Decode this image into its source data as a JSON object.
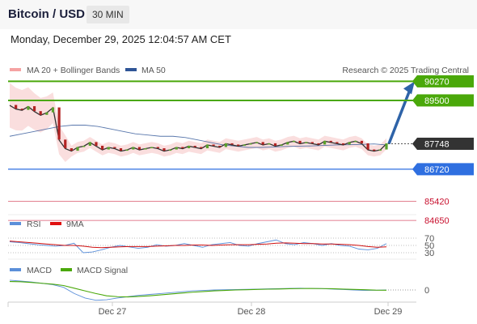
{
  "header": {
    "pair": "Bitcoin / USD",
    "timeframe": "30 MIN"
  },
  "timestamp": "Monday, December 29, 2025 12:04:57 AM CET",
  "legend": {
    "bb": "MA 20 + Bollinger Bands",
    "ma50": "MA 50",
    "credit": "Research © 2025 Trading Central"
  },
  "colors": {
    "green": "#4aa80a",
    "blue": "#2f6fe0",
    "red": "#c8102e",
    "price": "#333333",
    "bb": "#f5b5b5",
    "arrow": "#2e63a8"
  },
  "chart_data": [
    {
      "type": "line",
      "x_ticks": [
        "Dec 27",
        "Dec 28",
        "Dec 29"
      ],
      "ylim": [
        84000,
        91200
      ],
      "price_path": [
        89300,
        89150,
        89100,
        89250,
        89050,
        88900,
        89000,
        89200,
        87900,
        87550,
        87450,
        87600,
        87650,
        87800,
        87650,
        87500,
        87600,
        87550,
        87450,
        87500,
        87600,
        87500,
        87550,
        87600,
        87550,
        87450,
        87500,
        87600,
        87550,
        87650,
        87600,
        87550,
        87700,
        87650,
        87600,
        87750,
        87700,
        87650,
        87700,
        87750,
        87800,
        87700,
        87750,
        87650,
        87700,
        87800,
        87850,
        87750,
        87800,
        87750,
        87700,
        87850,
        87800,
        87750,
        87700,
        87800,
        87850,
        87750,
        87500,
        87450,
        87500,
        87748
      ],
      "ma50_path": [
        88050,
        88150,
        88250,
        88350,
        88450,
        88500,
        88500,
        88450,
        88350,
        88250,
        88150,
        88100,
        88050,
        88050,
        88000,
        87900,
        87800,
        87700,
        87650,
        87600,
        87600,
        87620,
        87640,
        87650,
        87660,
        87680,
        87700,
        87710,
        87720,
        87740,
        87700
      ],
      "levels": [
        {
          "value": "90270",
          "color": "#4aa80a"
        },
        {
          "value": "89500",
          "color": "#4aa80a"
        },
        {
          "value": "87748",
          "color": "#333333"
        },
        {
          "value": "86720",
          "color": "#2f6fe0"
        },
        {
          "value": "85420",
          "color": "#c8102e"
        },
        {
          "value": "84650",
          "color": "#c8102e"
        }
      ],
      "target": 90270
    },
    {
      "type": "line",
      "name_rsi": "RSI",
      "name_ma": "9MA",
      "ylim": [
        30,
        70
      ],
      "y_ticks": [
        "70",
        "50",
        "30"
      ],
      "rsi": [
        60,
        58,
        55,
        52,
        50,
        48,
        50,
        56,
        30,
        32,
        38,
        45,
        50,
        46,
        42,
        45,
        52,
        48,
        50,
        55,
        50,
        45,
        52,
        55,
        58,
        50,
        48,
        55,
        60,
        65,
        55,
        52,
        58,
        55,
        50,
        55,
        50,
        48,
        40,
        38,
        42,
        55
      ],
      "ma9": [
        62,
        60,
        58,
        56,
        54,
        52,
        50,
        50,
        48,
        45,
        44,
        45,
        46,
        47,
        47,
        47,
        48,
        49,
        50,
        50,
        51,
        51,
        50,
        51,
        52,
        52,
        52,
        53,
        54,
        56,
        57,
        56,
        55,
        55,
        54,
        54,
        53,
        52,
        50,
        47,
        45,
        46
      ]
    },
    {
      "type": "line",
      "name_macd": "MACD",
      "name_signal": "MACD Signal",
      "y_ticks": [
        "0"
      ],
      "macd": [
        220,
        200,
        180,
        150,
        120,
        60,
        -80,
        -180,
        -230,
        -220,
        -180,
        -150,
        -120,
        -100,
        -80,
        -60,
        -40,
        -20,
        -10,
        0,
        5,
        10,
        15,
        20,
        25,
        30,
        35,
        40,
        35,
        30,
        20,
        10,
        0,
        -10,
        -5,
        0
      ],
      "signal": [
        190,
        185,
        170,
        150,
        130,
        100,
        40,
        -20,
        -80,
        -130,
        -150,
        -155,
        -145,
        -130,
        -110,
        -90,
        -70,
        -50,
        -35,
        -20,
        -10,
        0,
        5,
        12,
        18,
        22,
        28,
        32,
        33,
        32,
        28,
        20,
        12,
        5,
        -3,
        -5
      ]
    }
  ]
}
